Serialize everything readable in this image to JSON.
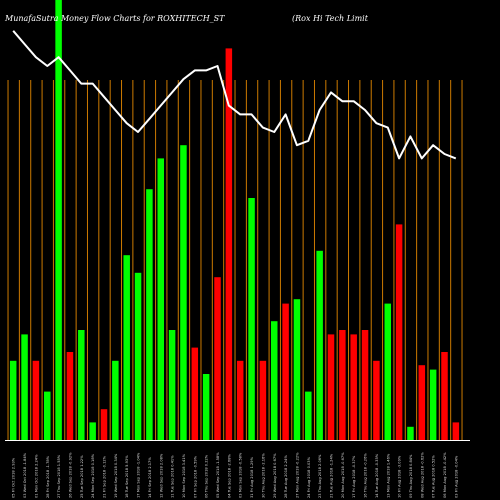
{
  "chart_data": {
    "type": "bar",
    "title": "MunafaSutra  Money Flow  Charts for ROXHITECH_ST",
    "subtitle": "(Rox Hi  Tech Limit",
    "xlabel": "",
    "ylabel": "",
    "ylim": [
      0,
      100
    ],
    "grid": true,
    "colors": {
      "background": "#000000",
      "grid": "#cc7a00",
      "up": "#00ff00",
      "down": "#ff0000",
      "line": "#ffffff"
    },
    "categories": [
      "05 Fri Oct 2018 2.93%",
      "03 Wed Oct 2018 -1.84%",
      "01 Mon Oct 2018 2.24%",
      "28 Fri Sep 2018 -1.78%",
      "27 Thu Sep 2018 1.55%",
      "26 Wed Sep 2018 -0.92%",
      "25 Tue Sep 2018 1.22%",
      "24 Mon Sep 2018 0.18%",
      "21 Fri Sep 2018 -0.12%",
      "19 Wed Sep 2018 0.34%",
      "18 Tue Sep 2018 5.93%",
      "17 Mon Sep 2018 -1.04%",
      "14 Fri Sep 2018 2.17%",
      "12 Wed Sep 2018 2.08%",
      "11 Tue Sep 2018 0.41%",
      "10 Mon Sep 2018 3.41%",
      "07 Fri Sep 2018 -0.59%",
      "06 Thu Sep 2018 0.22%",
      "05 Wed Sep 2018 -1.58%",
      "04 Tue Sep 2018 -2.68%",
      "03 Mon Sep 2018 -0.58%",
      "31 Fri Aug 2018 1.29%",
      "30 Thu Aug 2018 -2.16%",
      "29 Wed Aug 2018 0.67%",
      "28 Tue Aug 2018 2.24%",
      "27 Mon Aug 2018 -0.22%",
      "24 Fri Aug 2018 0.03%",
      "23 Thu Aug 2018 2.06%",
      "21 Tue Aug 2018 -1.24%",
      "20 Mon Aug 2018 -0.67%",
      "17 Fri Aug 2018 -0.37%",
      "16 Thu Aug 2018 -0.26%",
      "14 Tue Aug 2018 -0.35%",
      "13 Mon Aug 2018 1.46%",
      "10 Fri Aug 2018 -3.09%",
      "09 Thu Aug 2018 0.84%",
      "08 Wed Aug 2018 -0.62%",
      "07 Tue Aug 2018 0.52%",
      "06 Mon Aug 2018 -0.42%",
      "03 Fri Aug 2018 -0.04%"
    ],
    "series": [
      {
        "type": "bar",
        "values": [
          18,
          24,
          18,
          11,
          100,
          20,
          25,
          4,
          7,
          18,
          42,
          38,
          57,
          64,
          25,
          67,
          21,
          15,
          37,
          89,
          18,
          55,
          18,
          27,
          31,
          32,
          11,
          43,
          24,
          25,
          24,
          25,
          18,
          31,
          49,
          3,
          17,
          16,
          20,
          4
        ],
        "direction": [
          "up",
          "up",
          "down",
          "up",
          "up",
          "down",
          "up",
          "up",
          "down",
          "up",
          "up",
          "up",
          "up",
          "up",
          "up",
          "up",
          "down",
          "up",
          "down",
          "down",
          "down",
          "up",
          "down",
          "up",
          "down",
          "up",
          "up",
          "up",
          "down",
          "down",
          "down",
          "down",
          "down",
          "up",
          "down",
          "up",
          "down",
          "up",
          "down",
          "down"
        ]
      },
      {
        "type": "line",
        "values": [
          93,
          90,
          87,
          85,
          87,
          84,
          81,
          81,
          78,
          75,
          72,
          70,
          73,
          76,
          79,
          82,
          84,
          84,
          85,
          76,
          74,
          74,
          71,
          70,
          74,
          67,
          68,
          75,
          79,
          77,
          77,
          75,
          72,
          71,
          64,
          69,
          64,
          67,
          65,
          64
        ]
      }
    ]
  }
}
